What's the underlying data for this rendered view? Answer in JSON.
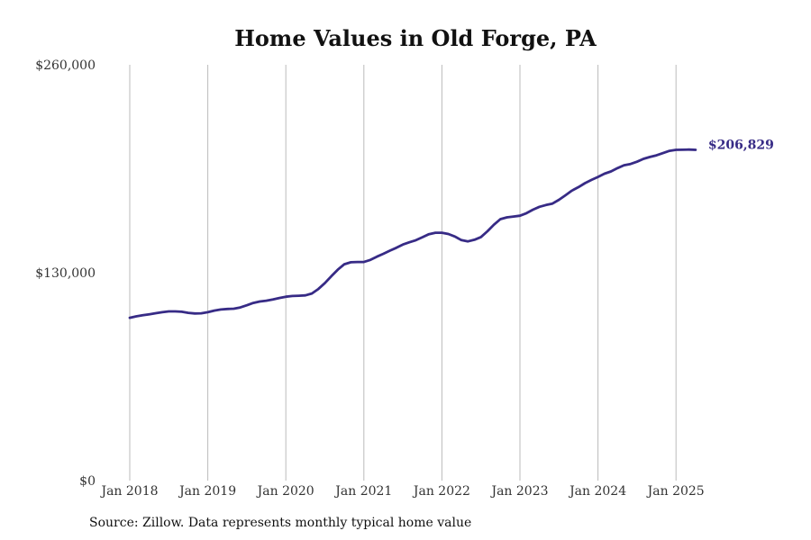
{
  "title": "Home Values in Old Forge, PA",
  "source_note": "Source: Zillow. Data represents monthly typical home value",
  "colors": {
    "line": "#372b86",
    "grid": "#bbbbbb",
    "text": "#333333"
  },
  "chart_data": {
    "type": "line",
    "title": "Home Values in Old Forge, PA",
    "xlabel": "",
    "ylabel": "",
    "ylim": [
      0,
      260000
    ],
    "y_ticks": [
      {
        "value": 0,
        "label": "$0"
      },
      {
        "value": 130000,
        "label": "$130,000"
      },
      {
        "value": 260000,
        "label": "$260,000"
      }
    ],
    "x_ticks": [
      "Jan 2018",
      "Jan 2019",
      "Jan 2020",
      "Jan 2021",
      "Jan 2022",
      "Jan 2023",
      "Jan 2024",
      "Jan 2025"
    ],
    "grid": "vertical",
    "last_value_label": "$206,829",
    "series": [
      {
        "x": [
          "2018-01",
          "2018-02",
          "2018-03",
          "2018-04",
          "2018-05",
          "2018-06",
          "2018-07",
          "2018-08",
          "2018-09",
          "2018-10",
          "2018-11",
          "2018-12",
          "2019-01",
          "2019-02",
          "2019-03",
          "2019-04",
          "2019-05",
          "2019-06",
          "2019-07",
          "2019-08",
          "2019-09",
          "2019-10",
          "2019-11",
          "2019-12",
          "2020-01",
          "2020-02",
          "2020-03",
          "2020-04",
          "2020-05",
          "2020-06",
          "2020-07",
          "2020-08",
          "2020-09",
          "2020-10",
          "2020-11",
          "2020-12",
          "2021-01",
          "2021-02",
          "2021-03",
          "2021-04",
          "2021-05",
          "2021-06",
          "2021-07",
          "2021-08",
          "2021-09",
          "2021-10",
          "2021-11",
          "2021-12",
          "2022-01",
          "2022-02",
          "2022-03",
          "2022-04",
          "2022-05",
          "2022-06",
          "2022-07",
          "2022-08",
          "2022-09",
          "2022-10",
          "2022-11",
          "2022-12",
          "2023-01",
          "2023-02",
          "2023-03",
          "2023-04",
          "2023-05",
          "2023-06",
          "2023-07",
          "2023-08",
          "2023-09",
          "2023-10",
          "2023-11",
          "2023-12",
          "2024-01",
          "2024-02",
          "2024-03",
          "2024-04",
          "2024-05",
          "2024-06",
          "2024-07",
          "2024-08",
          "2024-09",
          "2024-10",
          "2024-11",
          "2024-12",
          "2025-01",
          "2025-02",
          "2025-03",
          "2025-04"
        ],
        "values": [
          101800,
          102700,
          103400,
          104000,
          104700,
          105300,
          105800,
          105800,
          105600,
          104900,
          104500,
          104600,
          105300,
          106300,
          107000,
          107300,
          107500,
          108300,
          109600,
          111100,
          112000,
          112500,
          113300,
          114200,
          115000,
          115400,
          115600,
          115800,
          117000,
          119800,
          123500,
          127800,
          131900,
          135300,
          136500,
          136700,
          136700,
          138000,
          140000,
          141800,
          143800,
          145600,
          147600,
          149000,
          150300,
          152200,
          154100,
          155000,
          155000,
          154200,
          152600,
          150400,
          149600,
          150600,
          152300,
          155900,
          160000,
          163500,
          164600,
          165100,
          165600,
          167200,
          169400,
          171200,
          172300,
          173200,
          175600,
          178400,
          181300,
          183500,
          186000,
          188000,
          189900,
          191900,
          193300,
          195400,
          197200,
          198000,
          199400,
          201200,
          202400,
          203400,
          204800,
          206200,
          206800,
          206900,
          207000,
          206829
        ]
      }
    ]
  }
}
